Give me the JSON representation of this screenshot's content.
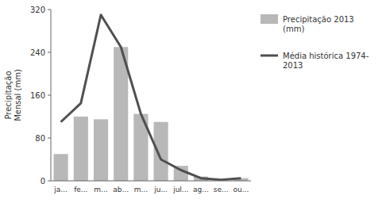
{
  "chart_data": {
    "type": "bar",
    "ylabel": "Precipitação\nMensal (mm)",
    "categories": [
      "ja...",
      "fe...",
      "m...",
      "ab...",
      "m...",
      "ju...",
      "jul...",
      "ag...",
      "se...",
      "ou..."
    ],
    "series": [
      {
        "name": "Precipitação 2013\n(mm)",
        "type": "bar",
        "color": "#b8b8b8",
        "values": [
          50,
          120,
          115,
          250,
          125,
          110,
          28,
          8,
          2,
          5
        ]
      },
      {
        "name": "Média histórica 1974-\n2013",
        "type": "line",
        "color": "#505050",
        "values": [
          110,
          145,
          310,
          250,
          125,
          40,
          20,
          5,
          2,
          5
        ]
      }
    ],
    "ylim": [
      0,
      320
    ],
    "yticks": [
      0,
      80,
      160,
      240,
      320
    ],
    "grid": false,
    "legend": "right"
  }
}
